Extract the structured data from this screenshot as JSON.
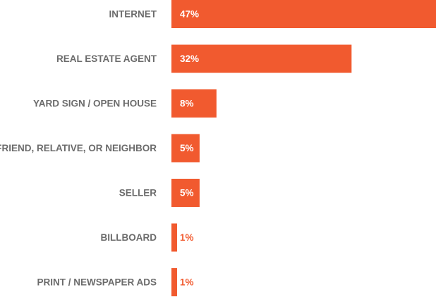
{
  "chart_data": {
    "type": "bar",
    "orientation": "horizontal",
    "title": "",
    "xlabel": "",
    "ylabel": "",
    "categories": [
      "INTERNET",
      "REAL ESTATE AGENT",
      "YARD SIGN / OPEN HOUSE",
      "FRIEND, RELATIVE, OR NEIGHBOR",
      "SELLER",
      "BILLBOARD",
      "PRINT / NEWSPAPER ADS"
    ],
    "values": [
      47,
      32,
      8,
      5,
      5,
      1,
      1
    ],
    "value_labels": [
      "47%",
      "32%",
      "8%",
      "5%",
      "5%",
      "1%",
      "1%"
    ],
    "xlim": [
      0,
      47
    ],
    "grid": false,
    "legend": "none",
    "colors": {
      "bar": "#f15a2f",
      "category_text": "#6b6b6b",
      "value_text_inside": "#ffffff",
      "value_text_outside": "#f15a2f"
    }
  }
}
